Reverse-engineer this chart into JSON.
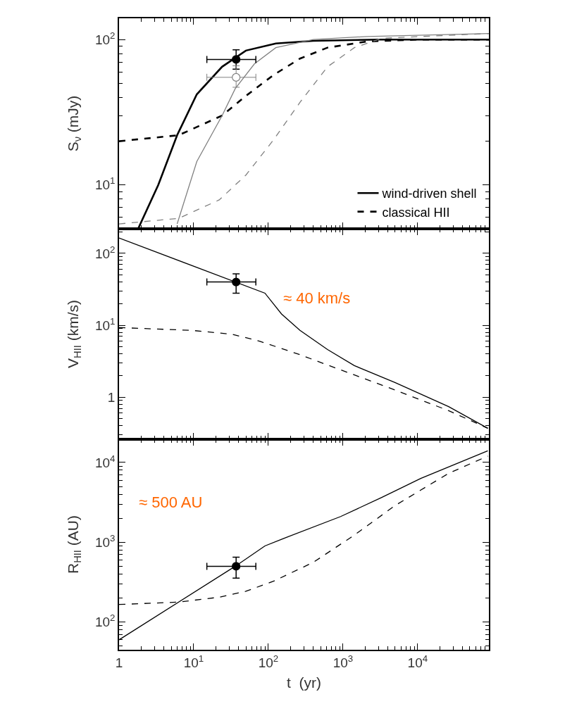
{
  "chart_data": [
    {
      "type": "line",
      "ylabel": "S$_{ν}$ (mJy)",
      "log": "xy",
      "xlim": [
        1,
        90000
      ],
      "ylim": [
        5,
        140
      ],
      "tick_labels": "y",
      "legend": "bottom right",
      "xticks": [
        {
          "value": 1,
          "label": "1"
        },
        {
          "value": 10,
          "label": "10$^{1}$"
        },
        {
          "value": 100,
          "label": "10$^{2}$"
        },
        {
          "value": 1000,
          "label": "10$^{3}$"
        },
        {
          "value": 10000,
          "label": "10$^{4}$"
        }
      ],
      "yticks": [
        {
          "value": 10,
          "label": "10$^{1}$"
        },
        {
          "value": 100,
          "label": "10$^{2}$"
        }
      ],
      "series": [
        {
          "name": "wind-driven shell",
          "color": "#000000",
          "line_style": "solid",
          "x": [
            1.8,
            3.35,
            6,
            11,
            24,
            50,
            126,
            400,
            3000,
            90000
          ],
          "values": [
            5.0,
            10,
            22,
            42,
            65,
            84,
            94,
            98,
            100,
            100
          ]
        },
        {
          "name": "classical HII",
          "color": "#000000",
          "line_style": "dashed",
          "x": [
            1,
            6.3,
            24,
            50,
            117,
            265,
            620,
            2100,
            10000,
            90000
          ],
          "values": [
            20,
            22,
            30,
            41,
            57,
            74,
            88,
            97,
            100,
            100
          ]
        },
        {
          "color": "#808080",
          "line_style": "solid",
          "x": [
            6,
            11,
            24,
            36,
            65,
            126,
            400,
            2100,
            90000
          ],
          "values": [
            5.4,
            14.5,
            30,
            46,
            68,
            88,
            100,
            105,
            110
          ]
        },
        {
          "color": "#808080",
          "line_style": "dashed",
          "x": [
            1,
            6.3,
            22,
            50,
            117,
            265,
            620,
            1420,
            3300,
            90000
          ],
          "values": [
            5.4,
            5.9,
            7.9,
            11.7,
            20.4,
            37,
            65,
            88,
            102,
            110
          ]
        },
        {
          "type": "scatter",
          "marker": "circle",
          "color": "#000000",
          "x": [
            37
          ],
          "values": [
            73
          ],
          "errors": [
            [
              62.5,
              85
            ]
          ],
          "xerrors": [
            [
              15,
              68
            ]
          ]
        },
        {
          "type": "scatter",
          "marker": "circle-open",
          "color": "#808080",
          "x": [
            37
          ],
          "values": [
            55
          ],
          "errors": [
            [
              47,
              66
            ]
          ],
          "xerrors": [
            [
              15,
              68
            ]
          ]
        }
      ]
    },
    {
      "type": "line",
      "ylabel": "V$_{HII}$ (km/s)",
      "log": "xy",
      "xlim": [
        1,
        90000
      ],
      "ylim": [
        0.26,
        220
      ],
      "tick_labels": "y",
      "annotations": [
        "≈ 40 km/s"
      ],
      "xticks": [
        {
          "value": 1,
          "label": "1"
        },
        {
          "value": 10,
          "label": "10$^{1}$"
        },
        {
          "value": 100,
          "label": "10$^{2}$"
        },
        {
          "value": 1000,
          "label": "10$^{3}$"
        },
        {
          "value": 10000,
          "label": "10$^{4}$"
        }
      ],
      "yticks": [
        1,
        {
          "value": 10,
          "label": "10$^{1}$"
        },
        {
          "value": 100,
          "label": "10$^{2}$"
        }
      ],
      "series": [
        {
          "color": "#000000",
          "line_style": "solid",
          "x": [
            1,
            90,
            150,
            265,
            620,
            1420,
            4970,
            26000,
            87000
          ],
          "values": [
            164,
            28,
            14.4,
            8.5,
            4.6,
            2.75,
            1.6,
            0.74,
            0.37
          ]
        },
        {
          "color": "#000000",
          "line_style": "dashed",
          "x": [
            1,
            9.5,
            33,
            77,
            265,
            930,
            4970,
            26000,
            87000
          ],
          "values": [
            9.3,
            8.5,
            7.5,
            6.0,
            3.9,
            2.4,
            1.26,
            0.65,
            0.37
          ]
        },
        {
          "type": "scatter",
          "marker": "circle",
          "color": "#000000",
          "x": [
            37
          ],
          "values": [
            40
          ],
          "errors": [
            [
              28,
              52
            ]
          ],
          "xerrors": [
            [
              15,
              68
            ]
          ]
        }
      ]
    },
    {
      "type": "line",
      "ylabel": "R$_{HII}$ (AU)",
      "xlabel": "t  (yr)",
      "log": "xy",
      "xlim": [
        1,
        90000
      ],
      "ylim": [
        45,
        19500
      ],
      "annotations": [
        "≈ 500 AU"
      ],
      "xticks": [
        {
          "value": 1,
          "label": "1"
        },
        {
          "value": 10,
          "label": "10$^{1}$"
        },
        {
          "value": 100,
          "label": "10$^{2}$"
        },
        {
          "value": 1000,
          "label": "10$^{3}$"
        },
        {
          "value": 10000,
          "label": "10$^{4}$"
        }
      ],
      "yticks": [
        {
          "value": 100,
          "label": "10$^{2}$"
        },
        {
          "value": 1000,
          "label": "10$^{3}$"
        },
        {
          "value": 10000,
          "label": "10$^{4}$"
        }
      ],
      "series": [
        {
          "color": "#000000",
          "line_style": "solid",
          "x": [
            1,
            36,
            90,
            150,
            930,
            3300,
            11000,
            87000
          ],
          "values": [
            60,
            500,
            900,
            1090,
            2100,
            3640,
            6300,
            14000
          ]
        },
        {
          "color": "#000000",
          "line_style": "dashed",
          "x": [
            1,
            6.3,
            22,
            50,
            117,
            400,
            1420,
            4970,
            26000,
            87000
          ],
          "values": [
            166,
            178,
            205,
            243,
            325,
            560,
            1230,
            2880,
            7300,
            12000
          ]
        },
        {
          "type": "scatter",
          "marker": "circle",
          "color": "#000000",
          "x": [
            37
          ],
          "values": [
            500
          ],
          "errors": [
            [
              355,
              650
            ]
          ],
          "xerrors": [
            [
              15,
              68
            ]
          ]
        }
      ]
    }
  ]
}
